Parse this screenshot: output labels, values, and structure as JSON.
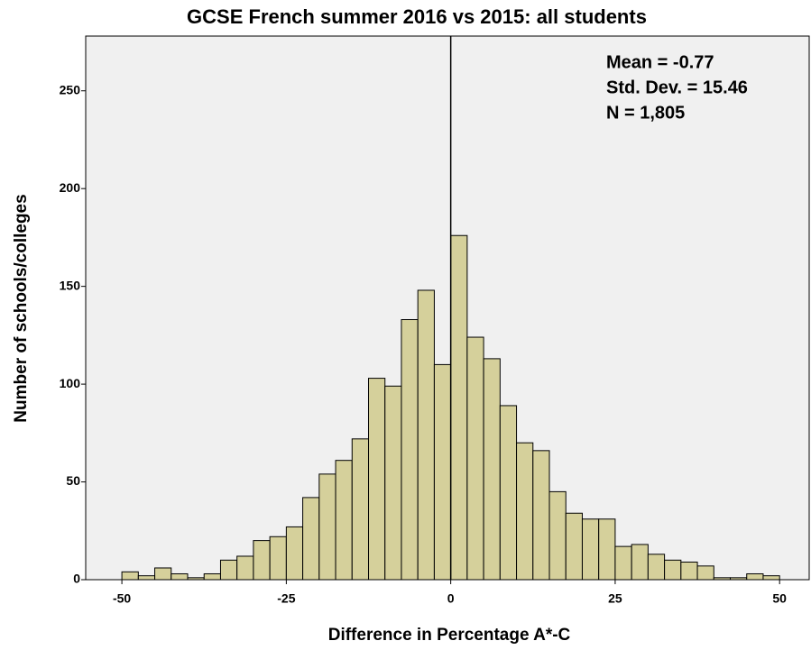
{
  "chart_data": {
    "type": "histogram",
    "title": "GCSE French summer 2016 vs 2015: all students",
    "x_label": "Difference in Percentage A*-C",
    "y_label": "Number of schools/colleges",
    "annotations": [
      "Mean = -0.77",
      "Std. Dev. = 15.46",
      "N = 1,805"
    ],
    "bins": [
      -50,
      -47.5,
      -45,
      -42.5,
      -40,
      -37.5,
      -35,
      -32.5,
      -30,
      -27.5,
      -25,
      -22.5,
      -20,
      -17.5,
      -15,
      -12.5,
      -10,
      -7.5,
      -5,
      -2.5,
      0,
      2.5,
      5,
      7.5,
      10,
      12.5,
      15,
      17.5,
      20,
      22.5,
      25,
      27.5,
      30,
      32.5,
      35,
      37.5,
      40,
      42.5,
      45,
      47.5,
      50
    ],
    "values": [
      4,
      2,
      6,
      3,
      1,
      3,
      10,
      12,
      20,
      22,
      27,
      42,
      54,
      61,
      72,
      103,
      99,
      133,
      148,
      110,
      176,
      124,
      113,
      89,
      70,
      66,
      45,
      34,
      31,
      31,
      17,
      18,
      13,
      10,
      9,
      7,
      1,
      1,
      3,
      2
    ],
    "color": "#d5d09b",
    "edge_color": "#000000",
    "background": "#f0f0f0",
    "reference_line_x": 0,
    "xlim": [
      -55.5,
      54.5
    ],
    "xticks": [
      -50,
      -25,
      0,
      25,
      50
    ],
    "ylim": [
      0,
      278
    ],
    "yticks": [
      0,
      50,
      100,
      150,
      200,
      250
    ]
  }
}
